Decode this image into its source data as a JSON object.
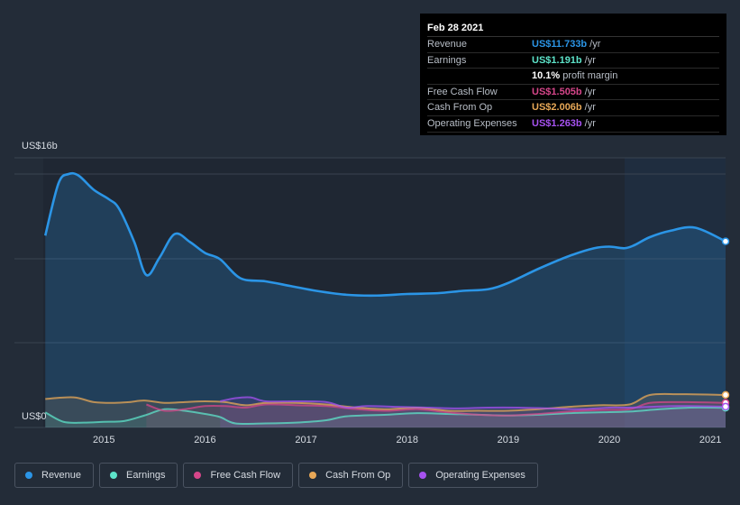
{
  "tooltip": {
    "date": "Feb 28 2021",
    "rows": [
      {
        "label": "Revenue",
        "value": "US$11.733b",
        "unit": "/yr",
        "color": "#2b95e6"
      },
      {
        "label": "Earnings",
        "value": "US$1.191b",
        "unit": "/yr",
        "color": "#5de3c9"
      },
      {
        "label": "",
        "value": "10.1%",
        "unit": "profit margin",
        "color": "#ffffff"
      },
      {
        "label": "Free Cash Flow",
        "value": "US$1.505b",
        "unit": "/yr",
        "color": "#d6468a"
      },
      {
        "label": "Cash From Op",
        "value": "US$2.006b",
        "unit": "/yr",
        "color": "#e8a857"
      },
      {
        "label": "Operating Expenses",
        "value": "US$1.263b",
        "unit": "/yr",
        "color": "#a652f0"
      }
    ]
  },
  "legend": [
    {
      "label": "Revenue",
      "color": "#2b95e6"
    },
    {
      "label": "Earnings",
      "color": "#5de3c9"
    },
    {
      "label": "Free Cash Flow",
      "color": "#d6468a"
    },
    {
      "label": "Cash From Op",
      "color": "#e8a857"
    },
    {
      "label": "Operating Expenses",
      "color": "#a652f0"
    }
  ],
  "chart_data": {
    "type": "line",
    "y_top_label": "US$16b",
    "y_bottom_label": "US$0",
    "ylim": [
      0,
      16
    ],
    "xlim": [
      2014.4,
      2021.15
    ],
    "x_ticks": [
      "2015",
      "2016",
      "2017",
      "2018",
      "2019",
      "2020",
      "2021"
    ],
    "grid": true,
    "series": [
      {
        "name": "Revenue",
        "color": "#2b95e6",
        "x": [
          2014.42,
          2014.55,
          2014.65,
          2014.75,
          2014.9,
          2015.05,
          2015.15,
          2015.3,
          2015.42,
          2015.55,
          2015.7,
          2015.85,
          2016.0,
          2016.15,
          2016.35,
          2016.6,
          2016.85,
          2017.1,
          2017.4,
          2017.7,
          2018.0,
          2018.3,
          2018.55,
          2018.8,
          2019.0,
          2019.3,
          2019.6,
          2019.85,
          2020.0,
          2020.15,
          2020.25,
          2020.4,
          2020.6,
          2020.85,
          2021.15
        ],
        "y": [
          12.1,
          15.4,
          16.0,
          15.9,
          15.0,
          14.4,
          13.8,
          11.7,
          9.6,
          10.7,
          12.2,
          11.7,
          11.0,
          10.6,
          9.4,
          9.2,
          8.9,
          8.6,
          8.35,
          8.3,
          8.4,
          8.45,
          8.6,
          8.7,
          9.1,
          10.0,
          10.8,
          11.3,
          11.4,
          11.3,
          11.5,
          12.0,
          12.4,
          12.6,
          11.733
        ]
      },
      {
        "name": "Earnings",
        "color": "#5de3c9",
        "x": [
          2014.42,
          2014.6,
          2014.8,
          2015.0,
          2015.2,
          2015.4,
          2015.6,
          2015.8,
          2016.0,
          2016.15,
          2016.3,
          2016.6,
          2016.9,
          2017.2,
          2017.4,
          2017.8,
          2018.1,
          2018.4,
          2018.7,
          2019.0,
          2019.3,
          2019.6,
          2019.9,
          2020.2,
          2020.5,
          2020.8,
          2021.15
        ],
        "y": [
          0.9,
          0.3,
          0.25,
          0.3,
          0.35,
          0.7,
          1.1,
          1.0,
          0.8,
          0.6,
          0.2,
          0.2,
          0.25,
          0.4,
          0.65,
          0.75,
          0.85,
          0.8,
          0.75,
          0.7,
          0.75,
          0.85,
          0.9,
          0.95,
          1.1,
          1.2,
          1.191
        ]
      },
      {
        "name": "Free Cash Flow",
        "color": "#d6468a",
        "x": [
          2015.42,
          2015.6,
          2015.8,
          2016.0,
          2016.2,
          2016.4,
          2016.6,
          2016.9,
          2017.2,
          2017.5,
          2017.8,
          2018.1,
          2018.4,
          2018.7,
          2019.0,
          2019.3,
          2019.6,
          2019.9,
          2020.2,
          2020.4,
          2020.7,
          2021.15
        ],
        "y": [
          1.4,
          1.0,
          1.1,
          1.3,
          1.3,
          1.2,
          1.4,
          1.35,
          1.3,
          1.1,
          1.0,
          1.1,
          0.9,
          0.75,
          0.7,
          0.8,
          0.95,
          1.05,
          1.1,
          1.5,
          1.55,
          1.505
        ]
      },
      {
        "name": "Cash From Op",
        "color": "#e8a857",
        "x": [
          2014.42,
          2014.7,
          2014.9,
          2015.1,
          2015.25,
          2015.4,
          2015.6,
          2015.8,
          2016.0,
          2016.2,
          2016.4,
          2016.6,
          2016.9,
          2017.2,
          2017.5,
          2017.8,
          2018.1,
          2018.4,
          2018.7,
          2019.0,
          2019.3,
          2019.6,
          2019.9,
          2020.2,
          2020.4,
          2020.7,
          2021.15
        ],
        "y": [
          1.75,
          1.85,
          1.55,
          1.5,
          1.55,
          1.65,
          1.5,
          1.55,
          1.6,
          1.55,
          1.35,
          1.5,
          1.5,
          1.4,
          1.2,
          1.1,
          1.2,
          1.0,
          1.0,
          1.0,
          1.1,
          1.25,
          1.35,
          1.4,
          2.0,
          2.05,
          2.006
        ]
      },
      {
        "name": "Operating Expenses",
        "color": "#a652f0",
        "x": [
          2016.15,
          2016.3,
          2016.45,
          2016.6,
          2016.9,
          2017.2,
          2017.4,
          2017.6,
          2017.9,
          2018.2,
          2018.5,
          2018.8,
          2019.1,
          2019.4,
          2019.7,
          2020.0,
          2020.2,
          2020.4,
          2020.7,
          2021.15
        ],
        "y": [
          1.6,
          1.8,
          1.85,
          1.6,
          1.6,
          1.55,
          1.2,
          1.3,
          1.25,
          1.2,
          1.15,
          1.2,
          1.2,
          1.15,
          1.1,
          1.2,
          1.2,
          1.25,
          1.3,
          1.263
        ]
      }
    ]
  }
}
